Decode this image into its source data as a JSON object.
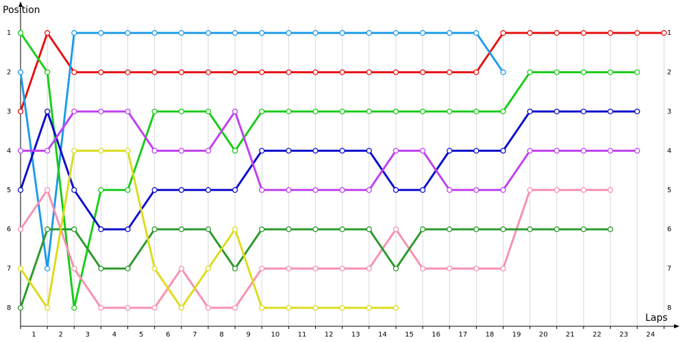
{
  "chart_data": {
    "type": "line",
    "y_label": "Position",
    "x_label": "Laps",
    "x": [
      0,
      1,
      2,
      3,
      4,
      5,
      6,
      7,
      8,
      9,
      10,
      11,
      12,
      13,
      14,
      15,
      16,
      17,
      18,
      19,
      20,
      21,
      22,
      23,
      24
    ],
    "xlim": [
      0,
      24.4
    ],
    "ylim": [
      8.47,
      0.3
    ],
    "xticks": [
      {
        "value": 0.5,
        "label": "1"
      },
      {
        "value": 1.5,
        "label": "2"
      },
      {
        "value": 2.5,
        "label": "3"
      },
      {
        "value": 3.5,
        "label": "4"
      },
      {
        "value": 4.5,
        "label": "5"
      },
      {
        "value": 5.5,
        "label": "6"
      },
      {
        "value": 6.5,
        "label": "7"
      },
      {
        "value": 7.5,
        "label": "8"
      },
      {
        "value": 8.5,
        "label": "9"
      },
      {
        "value": 9.5,
        "label": "10"
      },
      {
        "value": 10.5,
        "label": "11"
      },
      {
        "value": 11.5,
        "label": "12"
      },
      {
        "value": 12.5,
        "label": "13"
      },
      {
        "value": 13.5,
        "label": "14"
      },
      {
        "value": 14.5,
        "label": "15"
      },
      {
        "value": 15.5,
        "label": "16"
      },
      {
        "value": 16.5,
        "label": "17"
      },
      {
        "value": 17.5,
        "label": "18"
      },
      {
        "value": 18.5,
        "label": "19"
      },
      {
        "value": 19.5,
        "label": "20"
      },
      {
        "value": 20.5,
        "label": "21"
      },
      {
        "value": 21.5,
        "label": "22"
      },
      {
        "value": 22.5,
        "label": "23"
      },
      {
        "value": 23.5,
        "label": "24"
      }
    ],
    "x_gridlines": [
      0,
      1,
      2,
      3,
      4,
      5,
      6,
      7,
      8,
      9,
      10,
      11,
      12,
      13,
      14,
      15,
      16,
      17,
      18,
      19,
      20,
      21,
      22,
      23,
      24
    ],
    "yticks": [
      1,
      2,
      3,
      4,
      5,
      6,
      7,
      8
    ],
    "series": [
      {
        "color": "#e81010",
        "values": [
          3,
          1,
          2,
          2,
          2,
          2,
          2,
          2,
          2,
          2,
          2,
          2,
          2,
          2,
          2,
          2,
          2,
          2,
          1,
          1,
          1,
          1,
          1,
          1,
          1
        ]
      },
      {
        "color": "#1e9be8",
        "values": [
          2,
          7,
          1,
          1,
          1,
          1,
          1,
          1,
          1,
          1,
          1,
          1,
          1,
          1,
          1,
          1,
          1,
          1,
          2,
          null,
          null,
          null,
          null,
          null,
          null
        ]
      },
      {
        "color": "#18cc18",
        "values": [
          1,
          2,
          8,
          5,
          5,
          3,
          3,
          3,
          4,
          3,
          3,
          3,
          3,
          3,
          3,
          3,
          3,
          3,
          3,
          2,
          2,
          2,
          2,
          2,
          null
        ]
      },
      {
        "color": "#0c0ccc",
        "values": [
          5,
          3,
          5,
          6,
          6,
          5,
          5,
          5,
          5,
          4,
          4,
          4,
          4,
          4,
          5,
          5,
          4,
          4,
          4,
          3,
          3,
          3,
          3,
          3,
          null
        ]
      },
      {
        "color": "#c040f0",
        "values": [
          4,
          4,
          3,
          3,
          3,
          4,
          4,
          4,
          3,
          5,
          5,
          5,
          5,
          5,
          4,
          4,
          5,
          5,
          5,
          4,
          4,
          4,
          4,
          4,
          null
        ]
      },
      {
        "color": "#f890b0",
        "values": [
          6,
          5,
          7,
          8,
          8,
          8,
          7,
          8,
          8,
          7,
          7,
          7,
          7,
          7,
          6,
          7,
          7,
          7,
          7,
          5,
          5,
          5,
          5,
          null,
          null
        ]
      },
      {
        "color": "#2a9a2a",
        "values": [
          8,
          6,
          6,
          7,
          7,
          6,
          6,
          6,
          7,
          6,
          6,
          6,
          6,
          6,
          7,
          6,
          6,
          6,
          6,
          6,
          6,
          6,
          6,
          null,
          null
        ]
      },
      {
        "color": "#dcdc1c",
        "values": [
          7,
          8,
          4,
          4,
          4,
          7,
          8,
          7,
          6,
          8,
          8,
          8,
          8,
          8,
          8,
          null,
          null,
          null,
          null,
          null,
          null,
          null,
          null,
          null,
          null
        ]
      }
    ]
  }
}
